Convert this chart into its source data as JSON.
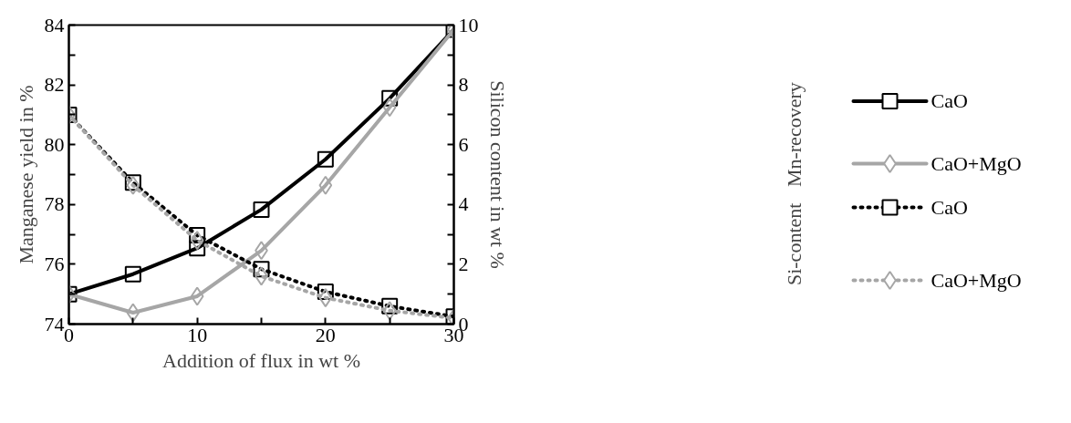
{
  "chart_data": {
    "type": "line",
    "xlabel": "Addition of flux in wt %",
    "ylabel": "Manganese yield in %",
    "y2label": "Silicon content in wt %",
    "x": [
      0,
      5,
      10,
      15,
      20,
      25,
      30
    ],
    "xlim": [
      0,
      30
    ],
    "xticks": [
      0,
      {
        "value": 5,
        "label": null
      },
      10,
      {
        "value": 15,
        "label": null
      },
      20,
      {
        "value": 25,
        "label": null
      },
      30
    ],
    "ylim": [
      74,
      84
    ],
    "yticks": [
      74,
      {
        "value": 75,
        "label": null
      },
      76,
      {
        "value": 77,
        "label": null
      },
      78,
      {
        "value": 79,
        "label": null
      },
      80,
      {
        "value": 81,
        "label": null
      },
      82,
      {
        "value": 83,
        "label": null
      },
      84
    ],
    "y2lim": [
      0,
      10
    ],
    "y2ticks": [
      0,
      {
        "value": 1,
        "label": null
      },
      2,
      {
        "value": 3,
        "label": null
      },
      4,
      {
        "value": 5,
        "label": null
      },
      6,
      {
        "value": 7,
        "label": null
      },
      8,
      {
        "value": 9,
        "label": null
      },
      10
    ],
    "grid": false,
    "legend": "right",
    "annotations": [
      "Mn-recovery",
      "Si-content"
    ],
    "series": [
      {
        "name": "CaO",
        "color": "#000000",
        "marker": "square",
        "line_style": "solid",
        "values": [
          75.0,
          75.67,
          76.54,
          77.83,
          79.51,
          81.55,
          83.85
        ]
      },
      {
        "name": "CaO+MgO",
        "color": "#a6a6a6",
        "marker": "diamond",
        "line_style": "solid",
        "values": [
          75.0,
          74.38,
          74.93,
          76.46,
          78.64,
          81.25,
          83.85
        ]
      },
      {
        "name": "CaO",
        "color": "#000000",
        "marker": "square",
        "line_style": "dotted",
        "axis": "y2",
        "values": [
          7.0,
          4.73,
          2.97,
          1.84,
          1.08,
          0.6,
          0.25
        ]
      },
      {
        "name": "CaO+MgO",
        "color": "#a6a6a6",
        "marker": "diamond",
        "line_style": "dotted",
        "axis": "y2",
        "values": [
          7.0,
          4.64,
          2.8,
          1.6,
          0.88,
          0.45,
          0.2
        ]
      }
    ]
  }
}
